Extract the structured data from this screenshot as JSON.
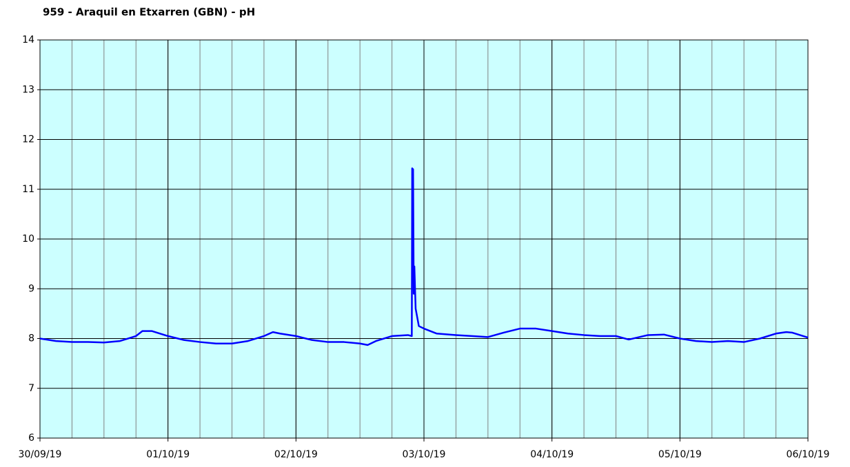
{
  "chart_data": {
    "type": "line",
    "title": "959 - Araquil en Etxarren (GBN) - pH",
    "xlim": [
      0,
      6
    ],
    "xticks": [
      {
        "value": 0,
        "label": "30/09/19"
      },
      {
        "value": 1,
        "label": "01/10/19"
      },
      {
        "value": 2,
        "label": "02/10/19"
      },
      {
        "value": 3,
        "label": "03/10/19"
      },
      {
        "value": 4,
        "label": "04/10/19"
      },
      {
        "value": 5,
        "label": "05/10/19"
      },
      {
        "value": 6,
        "label": "06/10/19"
      }
    ],
    "minor_grid_step": 0.25,
    "ylim": [
      6,
      14
    ],
    "yticks": [
      6,
      7,
      8,
      9,
      10,
      11,
      12,
      13,
      14
    ],
    "grid": true,
    "background": "#ccffff",
    "series": [
      {
        "color": "#0000ff",
        "x": [
          0,
          0.125,
          0.25,
          0.375,
          0.5,
          0.625,
          0.75,
          0.8,
          0.875,
          1.0,
          1.125,
          1.25,
          1.375,
          1.5,
          1.625,
          1.75,
          1.82,
          1.875,
          2.0,
          2.125,
          2.25,
          2.375,
          2.5,
          2.56,
          2.625,
          2.75,
          2.875,
          2.905,
          2.908,
          2.915,
          2.92,
          2.925,
          2.935,
          2.96,
          3.0,
          3.1,
          3.25,
          3.375,
          3.5,
          3.625,
          3.75,
          3.875,
          4.0,
          4.125,
          4.25,
          4.375,
          4.5,
          4.6,
          4.75,
          4.875,
          5.0,
          5.125,
          5.25,
          5.375,
          5.5,
          5.625,
          5.75,
          5.83,
          5.875,
          6.0
        ],
        "values": [
          8.0,
          7.95,
          7.93,
          7.93,
          7.92,
          7.95,
          8.05,
          8.15,
          8.15,
          8.05,
          7.97,
          7.93,
          7.9,
          7.9,
          7.95,
          8.05,
          8.13,
          8.1,
          8.05,
          7.97,
          7.93,
          7.93,
          7.9,
          7.87,
          7.95,
          8.05,
          8.07,
          8.05,
          11.42,
          11.4,
          8.9,
          9.45,
          8.6,
          8.25,
          8.2,
          8.1,
          8.07,
          8.05,
          8.03,
          8.12,
          8.2,
          8.2,
          8.15,
          8.1,
          8.07,
          8.05,
          8.05,
          7.98,
          8.07,
          8.08,
          8.0,
          7.95,
          7.93,
          7.95,
          7.93,
          8.0,
          8.1,
          8.13,
          8.12,
          8.02
        ]
      }
    ]
  }
}
